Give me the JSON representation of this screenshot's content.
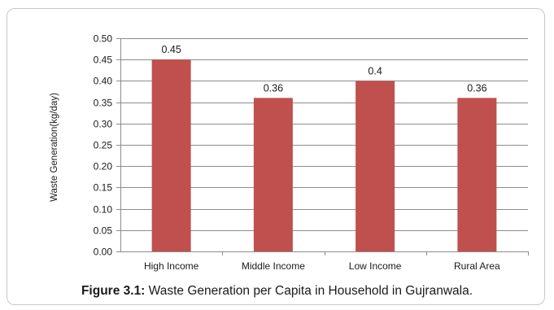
{
  "chart_data": {
    "type": "bar",
    "categories": [
      "High Income",
      "Middle Income",
      "Low Income",
      "Rural Area"
    ],
    "values": [
      0.45,
      0.36,
      0.4,
      0.36
    ],
    "value_labels": [
      "0.45",
      "0.36",
      "0.4",
      "0.36"
    ],
    "ylabel": "Waste Generation(kg/day)",
    "xlabel": "",
    "ylim": [
      0,
      0.5
    ],
    "yticks": [
      "0.00",
      "0.05",
      "0.10",
      "0.15",
      "0.20",
      "0.25",
      "0.30",
      "0.35",
      "0.40",
      "0.45",
      "0.50"
    ],
    "grid": true,
    "bar_color": "#c0504d",
    "grid_color": "#8c8c8c"
  },
  "caption": {
    "label": "Figure 3.1:",
    "text": " Waste Generation per Capita in Household in Gujranwala."
  }
}
